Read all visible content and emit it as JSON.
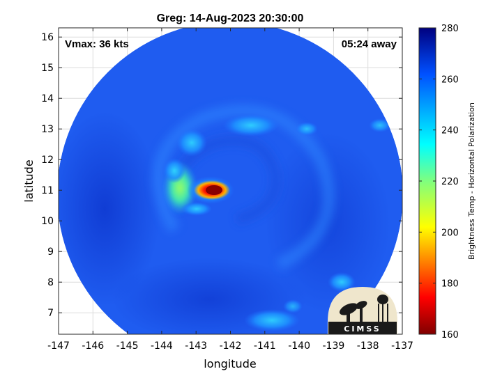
{
  "title": "Greg: 14-Aug-2023 20:30:00",
  "annotations": {
    "vmax": "Vmax: 36 kts",
    "time_away": "05:24 away"
  },
  "logo": {
    "text": "CIMSS"
  },
  "chart_data": {
    "type": "heatmap",
    "xlabel": "longitude",
    "ylabel": "latitude",
    "xlim": [
      -147,
      -137
    ],
    "ylim": [
      6.3,
      16.3
    ],
    "x_ticks": [
      -147,
      -146,
      -145,
      -144,
      -143,
      -142,
      -141,
      -140,
      -139,
      -138,
      -137
    ],
    "y_ticks": [
      7,
      8,
      9,
      10,
      11,
      12,
      13,
      14,
      15,
      16
    ],
    "x_tick_labels": [
      "-147",
      "-146",
      "-145",
      "-144",
      "-143",
      "-142",
      "-141",
      "-140",
      "-139",
      "-138",
      "-137"
    ],
    "y_tick_labels": [
      "7",
      "8",
      "9",
      "10",
      "11",
      "12",
      "13",
      "14",
      "15",
      "16"
    ],
    "grid": true,
    "colorbar": {
      "label": "Brightness Temp - Horizontal Polarization",
      "range": [
        160,
        280
      ],
      "ticks": [
        280,
        260,
        240,
        220,
        200,
        180,
        160
      ],
      "tick_labels": [
        "280",
        "260",
        "240",
        "220",
        "200",
        "180",
        "160"
      ],
      "colormap": "jet"
    },
    "swath": {
      "shape": "circle",
      "center_lon": -142.0,
      "center_lat": 11.2,
      "radius_deg": 5.0,
      "background_temp": 262
    },
    "features": [
      {
        "lon": -142.3,
        "lat": 11.0,
        "temp": 176
      },
      {
        "lon": -143.2,
        "lat": 10.9,
        "temp": 235
      },
      {
        "lon": -143.1,
        "lat": 11.8,
        "temp": 238
      },
      {
        "lon": -142.7,
        "lat": 12.5,
        "temp": 242
      },
      {
        "lon": -141.4,
        "lat": 13.0,
        "temp": 246
      },
      {
        "lon": -138.5,
        "lat": 8.3,
        "temp": 244
      },
      {
        "lon": -140.8,
        "lat": 6.6,
        "temp": 240
      }
    ]
  }
}
